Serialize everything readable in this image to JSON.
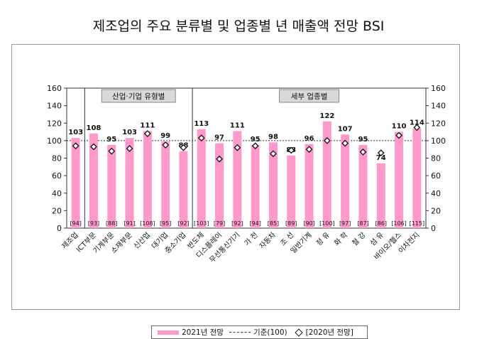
{
  "chart_data": {
    "type": "bar",
    "title": "제조업의 주요 분류별 및 업종별 년 매출액 전망 BSI",
    "categories": [
      "제조업",
      "ICT부문",
      "기계부문",
      "소재부문",
      "신산업",
      "대기업",
      "중소기업",
      "반도체",
      "디스플레이",
      "무선통신기기",
      "가 전",
      "자동차",
      "조 선",
      "일반기계",
      "정 유",
      "화 학",
      "철 강",
      "섬 유",
      "바이오/헬스",
      "이차전지"
    ],
    "series": [
      {
        "name": "2021년 전망",
        "values": [
          103,
          108,
          95,
          103,
          111,
          99,
          88,
          113,
          97,
          111,
          95,
          98,
          83,
          96,
          122,
          107,
          95,
          74,
          110,
          114
        ],
        "color": "#ff99cc"
      },
      {
        "name": "[2020년 전망]",
        "values": [
          94,
          93,
          88,
          91,
          108,
          95,
          92,
          103,
          79,
          92,
          94,
          85,
          89,
          90,
          100,
          97,
          87,
          86,
          106,
          115
        ]
      }
    ],
    "reference_line": {
      "label": "기준(100)",
      "value": 100
    },
    "group_labels": [
      "산업·기업 유형별",
      "세부 업종별"
    ],
    "ylim": [
      0,
      160
    ],
    "yticks": [
      0,
      20,
      40,
      60,
      80,
      100,
      120,
      140,
      160
    ],
    "legend": [
      "2021년 전망",
      "기준(100)",
      "[2020년 전망]"
    ],
    "legend_position": "bottom",
    "grid": false
  }
}
